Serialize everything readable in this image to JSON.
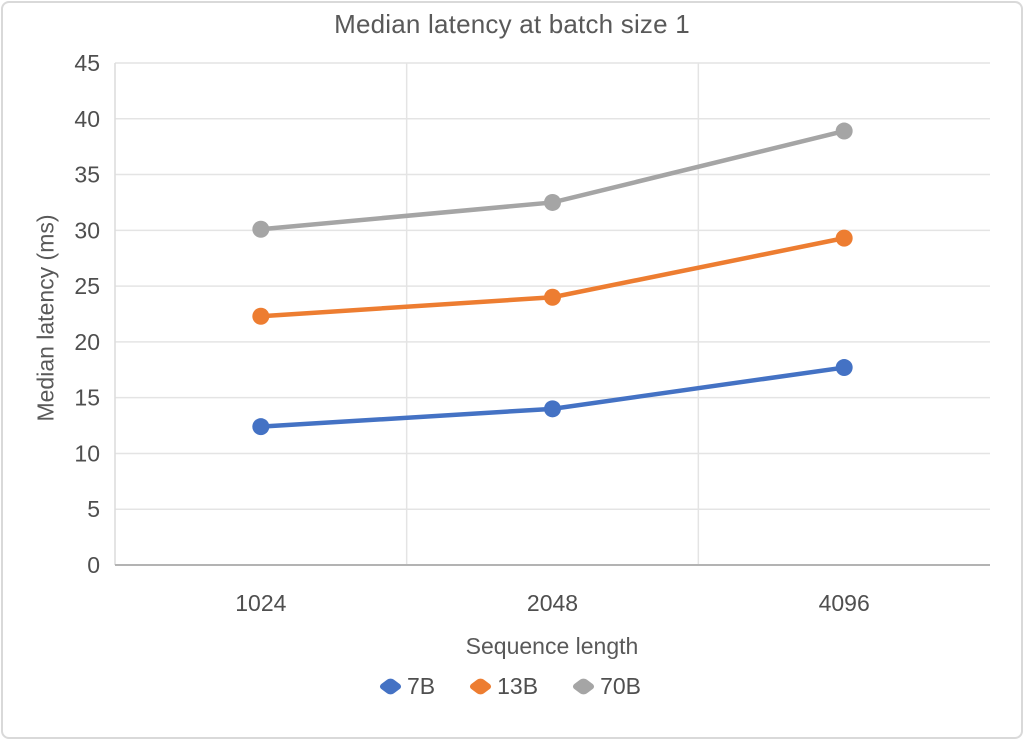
{
  "chart_data": {
    "type": "line",
    "title": "Median latency at batch size 1",
    "xlabel": "Sequence length",
    "ylabel": "Median latency (ms)",
    "categories": [
      "1024",
      "2048",
      "4096"
    ],
    "series": [
      {
        "name": "7B",
        "color": "#4472C4",
        "values": [
          12.4,
          14.0,
          17.7
        ]
      },
      {
        "name": "13B",
        "color": "#ED7D31",
        "values": [
          22.3,
          24.0,
          29.3
        ]
      },
      {
        "name": "70B",
        "color": "#A5A5A5",
        "values": [
          30.1,
          32.5,
          38.9
        ]
      }
    ],
    "ylim": [
      0,
      45
    ],
    "yticks": [
      0,
      5,
      10,
      15,
      20,
      25,
      30,
      35,
      40,
      45
    ],
    "grid": true,
    "legend_position": "bottom",
    "style": {
      "title_color": "#595959",
      "tick_color": "#4f4f4f",
      "axis_title_color": "#595959",
      "gridline_color": "#e4e4e4",
      "x_axis_line_color": "#b3b3b3",
      "y_axis_line_color": "#dcdcdc"
    }
  }
}
